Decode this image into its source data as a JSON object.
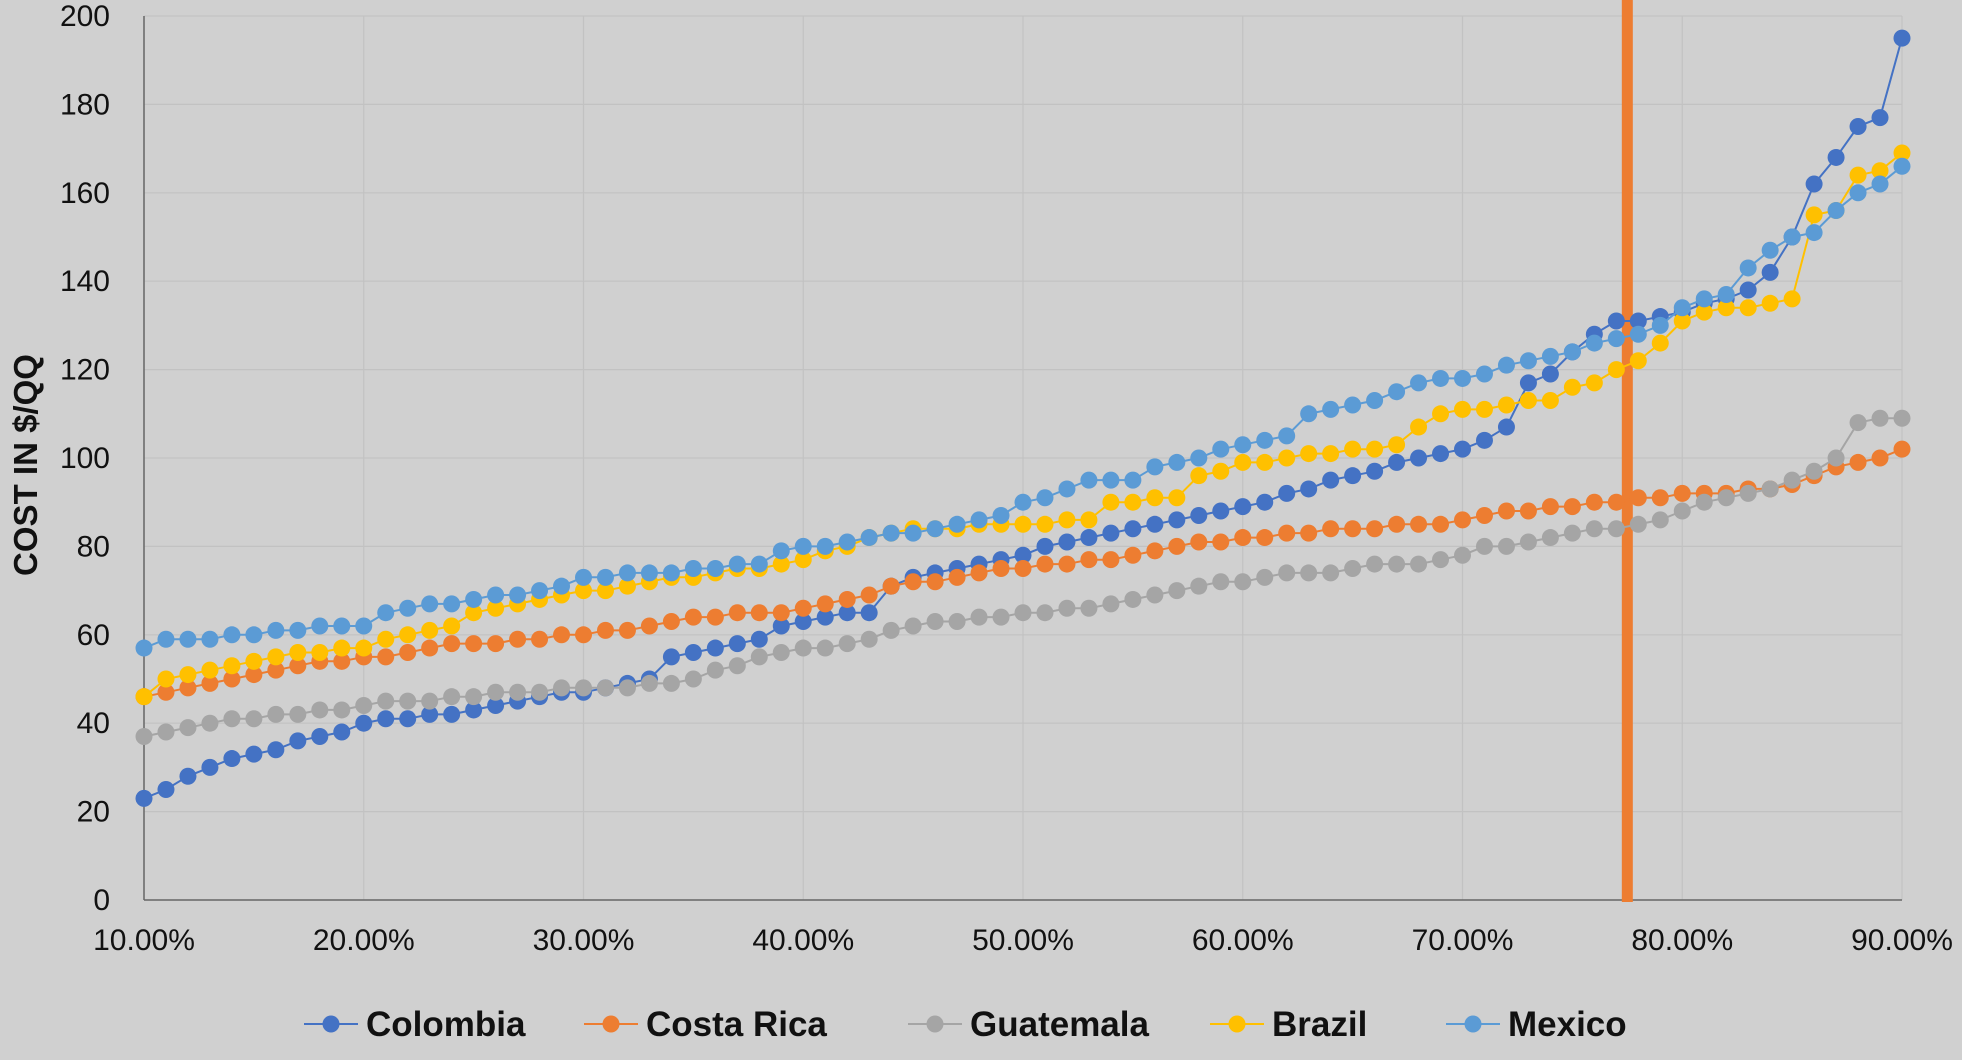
{
  "chart_data": {
    "type": "line",
    "title": "",
    "xlabel": "",
    "ylabel": "COST IN $/QQ",
    "xlim": [
      0.1,
      0.9
    ],
    "ylim": [
      0,
      200
    ],
    "x_ticks": [
      "10.00%",
      "20.00%",
      "30.00%",
      "40.00%",
      "50.00%",
      "60.00%",
      "70.00%",
      "80.00%",
      "90.00%"
    ],
    "y_ticks": [
      "0",
      "20",
      "40",
      "60",
      "80",
      "100",
      "120",
      "140",
      "160",
      "180",
      "200"
    ],
    "grid": true,
    "legend_position": "bottom",
    "reference_line": {
      "x": 0.775,
      "color": "#ED7D31"
    },
    "series": [
      {
        "name": "Colombia",
        "color": "#4472C4",
        "x": [
          0.1,
          0.11,
          0.12,
          0.13,
          0.14,
          0.15,
          0.16,
          0.17,
          0.18,
          0.19,
          0.2,
          0.21,
          0.22,
          0.23,
          0.24,
          0.25,
          0.26,
          0.27,
          0.28,
          0.29,
          0.3,
          0.31,
          0.32,
          0.33,
          0.34,
          0.35,
          0.36,
          0.37,
          0.38,
          0.39,
          0.4,
          0.41,
          0.42,
          0.43,
          0.44,
          0.45,
          0.46,
          0.47,
          0.48,
          0.49,
          0.5,
          0.51,
          0.52,
          0.53,
          0.54,
          0.55,
          0.56,
          0.57,
          0.58,
          0.59,
          0.6,
          0.61,
          0.62,
          0.63,
          0.64,
          0.65,
          0.66,
          0.67,
          0.68,
          0.69,
          0.7,
          0.71,
          0.72,
          0.73,
          0.74,
          0.75,
          0.76,
          0.77,
          0.78,
          0.79,
          0.8,
          0.81,
          0.82,
          0.83,
          0.84,
          0.85,
          0.86,
          0.87,
          0.88,
          0.89,
          0.9
        ],
        "values": [
          23,
          25,
          28,
          30,
          32,
          33,
          34,
          36,
          37,
          38,
          40,
          41,
          41,
          42,
          42,
          43,
          44,
          45,
          46,
          47,
          47,
          48,
          49,
          50,
          55,
          56,
          57,
          58,
          59,
          62,
          63,
          64,
          65,
          65,
          71,
          73,
          74,
          75,
          76,
          77,
          78,
          80,
          81,
          82,
          83,
          84,
          85,
          86,
          87,
          88,
          89,
          90,
          92,
          93,
          95,
          96,
          97,
          99,
          100,
          101,
          102,
          104,
          107,
          117,
          119,
          124,
          128,
          131,
          131,
          132,
          133,
          135,
          136,
          138,
          142,
          150,
          162,
          168,
          175,
          177,
          195
        ]
      },
      {
        "name": "Costa Rica",
        "color": "#ED7D31",
        "x": [
          0.1,
          0.11,
          0.12,
          0.13,
          0.14,
          0.15,
          0.16,
          0.17,
          0.18,
          0.19,
          0.2,
          0.21,
          0.22,
          0.23,
          0.24,
          0.25,
          0.26,
          0.27,
          0.28,
          0.29,
          0.3,
          0.31,
          0.32,
          0.33,
          0.34,
          0.35,
          0.36,
          0.37,
          0.38,
          0.39,
          0.4,
          0.41,
          0.42,
          0.43,
          0.44,
          0.45,
          0.46,
          0.47,
          0.48,
          0.49,
          0.5,
          0.51,
          0.52,
          0.53,
          0.54,
          0.55,
          0.56,
          0.57,
          0.58,
          0.59,
          0.6,
          0.61,
          0.62,
          0.63,
          0.64,
          0.65,
          0.66,
          0.67,
          0.68,
          0.69,
          0.7,
          0.71,
          0.72,
          0.73,
          0.74,
          0.75,
          0.76,
          0.77,
          0.78,
          0.79,
          0.8,
          0.81,
          0.82,
          0.83,
          0.84,
          0.85,
          0.86,
          0.87,
          0.88,
          0.89,
          0.9
        ],
        "values": [
          46,
          47,
          48,
          49,
          50,
          51,
          52,
          53,
          54,
          54,
          55,
          55,
          56,
          57,
          58,
          58,
          58,
          59,
          59,
          60,
          60,
          61,
          61,
          62,
          63,
          64,
          64,
          65,
          65,
          65,
          66,
          67,
          68,
          69,
          71,
          72,
          72,
          73,
          74,
          75,
          75,
          76,
          76,
          77,
          77,
          78,
          79,
          80,
          81,
          81,
          82,
          82,
          83,
          83,
          84,
          84,
          84,
          85,
          85,
          85,
          86,
          87,
          88,
          88,
          89,
          89,
          90,
          90,
          91,
          91,
          92,
          92,
          92,
          93,
          93,
          94,
          96,
          98,
          99,
          100,
          102
        ]
      },
      {
        "name": "Guatemala",
        "color": "#A5A5A5",
        "x": [
          0.1,
          0.11,
          0.12,
          0.13,
          0.14,
          0.15,
          0.16,
          0.17,
          0.18,
          0.19,
          0.2,
          0.21,
          0.22,
          0.23,
          0.24,
          0.25,
          0.26,
          0.27,
          0.28,
          0.29,
          0.3,
          0.31,
          0.32,
          0.33,
          0.34,
          0.35,
          0.36,
          0.37,
          0.38,
          0.39,
          0.4,
          0.41,
          0.42,
          0.43,
          0.44,
          0.45,
          0.46,
          0.47,
          0.48,
          0.49,
          0.5,
          0.51,
          0.52,
          0.53,
          0.54,
          0.55,
          0.56,
          0.57,
          0.58,
          0.59,
          0.6,
          0.61,
          0.62,
          0.63,
          0.64,
          0.65,
          0.66,
          0.67,
          0.68,
          0.69,
          0.7,
          0.71,
          0.72,
          0.73,
          0.74,
          0.75,
          0.76,
          0.77,
          0.78,
          0.79,
          0.8,
          0.81,
          0.82,
          0.83,
          0.84,
          0.85,
          0.86,
          0.87,
          0.88,
          0.89,
          0.9
        ],
        "values": [
          37,
          38,
          39,
          40,
          41,
          41,
          42,
          42,
          43,
          43,
          44,
          45,
          45,
          45,
          46,
          46,
          47,
          47,
          47,
          48,
          48,
          48,
          48,
          49,
          49,
          50,
          52,
          53,
          55,
          56,
          57,
          57,
          58,
          59,
          61,
          62,
          63,
          63,
          64,
          64,
          65,
          65,
          66,
          66,
          67,
          68,
          69,
          70,
          71,
          72,
          72,
          73,
          74,
          74,
          74,
          75,
          76,
          76,
          76,
          77,
          78,
          80,
          80,
          81,
          82,
          83,
          84,
          84,
          85,
          86,
          88,
          90,
          91,
          92,
          93,
          95,
          97,
          100,
          108,
          109,
          109
        ]
      },
      {
        "name": "Brazil",
        "color": "#FFC000",
        "x": [
          0.1,
          0.11,
          0.12,
          0.13,
          0.14,
          0.15,
          0.16,
          0.17,
          0.18,
          0.19,
          0.2,
          0.21,
          0.22,
          0.23,
          0.24,
          0.25,
          0.26,
          0.27,
          0.28,
          0.29,
          0.3,
          0.31,
          0.32,
          0.33,
          0.34,
          0.35,
          0.36,
          0.37,
          0.38,
          0.39,
          0.4,
          0.41,
          0.42,
          0.43,
          0.44,
          0.45,
          0.46,
          0.47,
          0.48,
          0.49,
          0.5,
          0.51,
          0.52,
          0.53,
          0.54,
          0.55,
          0.56,
          0.57,
          0.58,
          0.59,
          0.6,
          0.61,
          0.62,
          0.63,
          0.64,
          0.65,
          0.66,
          0.67,
          0.68,
          0.69,
          0.7,
          0.71,
          0.72,
          0.73,
          0.74,
          0.75,
          0.76,
          0.77,
          0.78,
          0.79,
          0.8,
          0.81,
          0.82,
          0.83,
          0.84,
          0.85,
          0.86,
          0.87,
          0.88,
          0.89,
          0.9
        ],
        "values": [
          46,
          50,
          51,
          52,
          53,
          54,
          55,
          56,
          56,
          57,
          57,
          59,
          60,
          61,
          62,
          65,
          66,
          67,
          68,
          69,
          70,
          70,
          71,
          72,
          73,
          73,
          74,
          75,
          75,
          76,
          77,
          79,
          80,
          82,
          83,
          84,
          84,
          84,
          85,
          85,
          85,
          85,
          86,
          86,
          90,
          90,
          91,
          91,
          96,
          97,
          99,
          99,
          100,
          101,
          101,
          102,
          102,
          103,
          107,
          110,
          111,
          111,
          112,
          113,
          113,
          116,
          117,
          120,
          122,
          126,
          131,
          133,
          134,
          134,
          135,
          136,
          155,
          156,
          164,
          165,
          169
        ]
      },
      {
        "name": "Mexico",
        "color": "#5B9BD5",
        "x": [
          0.1,
          0.11,
          0.12,
          0.13,
          0.14,
          0.15,
          0.16,
          0.17,
          0.18,
          0.19,
          0.2,
          0.21,
          0.22,
          0.23,
          0.24,
          0.25,
          0.26,
          0.27,
          0.28,
          0.29,
          0.3,
          0.31,
          0.32,
          0.33,
          0.34,
          0.35,
          0.36,
          0.37,
          0.38,
          0.39,
          0.4,
          0.41,
          0.42,
          0.43,
          0.44,
          0.45,
          0.46,
          0.47,
          0.48,
          0.49,
          0.5,
          0.51,
          0.52,
          0.53,
          0.54,
          0.55,
          0.56,
          0.57,
          0.58,
          0.59,
          0.6,
          0.61,
          0.62,
          0.63,
          0.64,
          0.65,
          0.66,
          0.67,
          0.68,
          0.69,
          0.7,
          0.71,
          0.72,
          0.73,
          0.74,
          0.75,
          0.76,
          0.77,
          0.78,
          0.79,
          0.8,
          0.81,
          0.82,
          0.83,
          0.84,
          0.85,
          0.86,
          0.87,
          0.88,
          0.89,
          0.9
        ],
        "values": [
          57,
          59,
          59,
          59,
          60,
          60,
          61,
          61,
          62,
          62,
          62,
          65,
          66,
          67,
          67,
          68,
          69,
          69,
          70,
          71,
          73,
          73,
          74,
          74,
          74,
          75,
          75,
          76,
          76,
          79,
          80,
          80,
          81,
          82,
          83,
          83,
          84,
          85,
          86,
          87,
          90,
          91,
          93,
          95,
          95,
          95,
          98,
          99,
          100,
          102,
          103,
          104,
          105,
          110,
          111,
          112,
          113,
          115,
          117,
          118,
          118,
          119,
          121,
          122,
          123,
          124,
          126,
          127,
          128,
          130,
          134,
          136,
          137,
          143,
          147,
          150,
          151,
          156,
          160,
          162,
          166
        ]
      }
    ]
  }
}
